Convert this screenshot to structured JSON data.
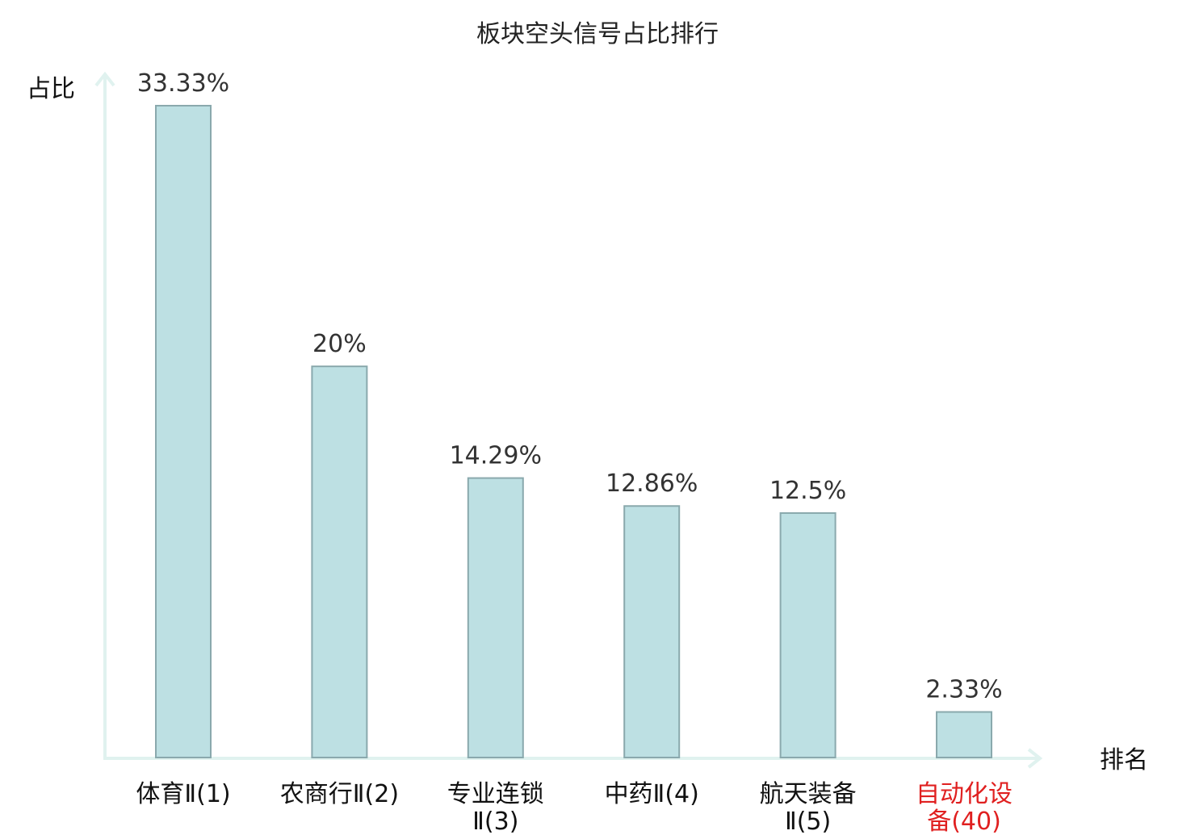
{
  "chart_data": {
    "type": "bar",
    "title": "板块空头信号占比排行",
    "ylabel": "占比",
    "xlabel": "排名",
    "ylim": [
      0,
      35
    ],
    "categories": [
      {
        "label_lines": [
          "体育Ⅱ(1)"
        ],
        "highlight": false
      },
      {
        "label_lines": [
          "农商行Ⅱ(2)"
        ],
        "highlight": false
      },
      {
        "label_lines": [
          "专业连锁",
          "Ⅱ(3)"
        ],
        "highlight": false
      },
      {
        "label_lines": [
          "中药Ⅱ(4)"
        ],
        "highlight": false
      },
      {
        "label_lines": [
          "航天装备",
          "Ⅱ(5)"
        ],
        "highlight": false
      },
      {
        "label_lines": [
          "自动化设",
          "备(40)"
        ],
        "highlight": true
      }
    ],
    "values": [
      33.33,
      20,
      14.29,
      12.86,
      12.5,
      2.33
    ],
    "value_labels": [
      "33.33%",
      "20%",
      "14.29%",
      "12.86%",
      "12.5%",
      "2.33%"
    ],
    "grid": false,
    "legend": "none"
  },
  "colors": {
    "bar_fill": "#bde0e3",
    "bar_stroke": "#8aa9ad",
    "axis": "#e0f2ef",
    "highlight_text": "#e02020"
  }
}
